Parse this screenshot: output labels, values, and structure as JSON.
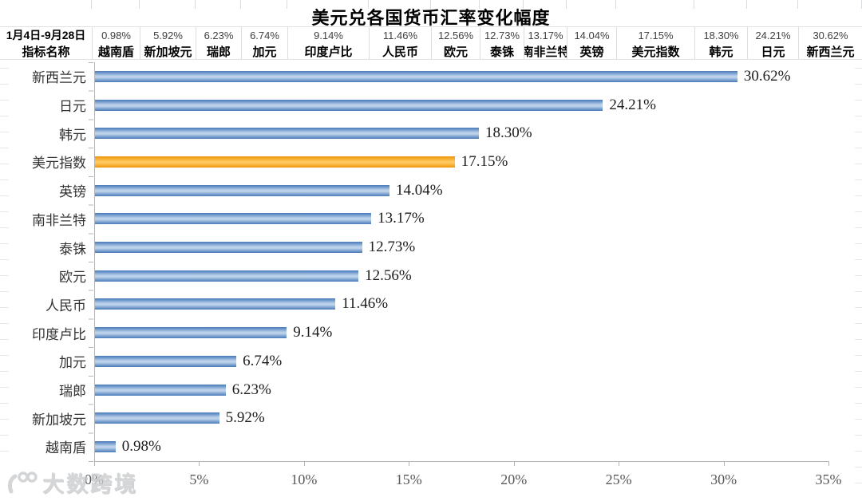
{
  "title": "美元兑各国货币汇率变化幅度",
  "header": {
    "row1_label": "1月4日-9月28日",
    "row2_label": "指标名称",
    "columns": [
      {
        "value": "0.98%",
        "name": "越南盾"
      },
      {
        "value": "5.92%",
        "name": "新加坡元"
      },
      {
        "value": "6.23%",
        "name": "瑞郎"
      },
      {
        "value": "6.74%",
        "name": "加元"
      },
      {
        "value": "9.14%",
        "name": "印度卢比"
      },
      {
        "value": "11.46%",
        "name": "人民币"
      },
      {
        "value": "12.56%",
        "name": "欧元"
      },
      {
        "value": "12.73%",
        "name": "泰铢"
      },
      {
        "value": "13.17%",
        "name": "南非兰特"
      },
      {
        "value": "14.04%",
        "name": "英镑"
      },
      {
        "value": "17.15%",
        "name": "美元指数"
      },
      {
        "value": "18.30%",
        "name": "韩元"
      },
      {
        "value": "24.21%",
        "name": "日元"
      },
      {
        "value": "30.62%",
        "name": "新西兰元"
      }
    ]
  },
  "chart_data": {
    "type": "bar",
    "orientation": "horizontal",
    "title": "美元兑各国货币汇率变化幅度",
    "period": "1月4日-9月28日",
    "categories": [
      "新西兰元",
      "日元",
      "韩元",
      "美元指数",
      "英镑",
      "南非兰特",
      "泰铢",
      "欧元",
      "人民币",
      "印度卢比",
      "加元",
      "瑞郎",
      "新加坡元",
      "越南盾"
    ],
    "values": [
      30.62,
      24.21,
      18.3,
      17.15,
      14.04,
      13.17,
      12.73,
      12.56,
      11.46,
      9.14,
      6.74,
      6.23,
      5.92,
      0.98
    ],
    "labels": [
      "30.62%",
      "24.21%",
      "18.30%",
      "17.15%",
      "14.04%",
      "13.17%",
      "12.73%",
      "12.56%",
      "11.46%",
      "9.14%",
      "6.74%",
      "6.23%",
      "5.92%",
      "0.98%"
    ],
    "highlight_category": "美元指数",
    "bar_color": "#4f81bd",
    "highlight_color": "#f0940a",
    "xlim": [
      0,
      35
    ],
    "x_ticks": [
      "0%",
      "5%",
      "10%",
      "15%",
      "20%",
      "25%",
      "30%",
      "35%"
    ],
    "grid": false,
    "legend": false
  },
  "watermark": {
    "text": "大数跨境"
  }
}
